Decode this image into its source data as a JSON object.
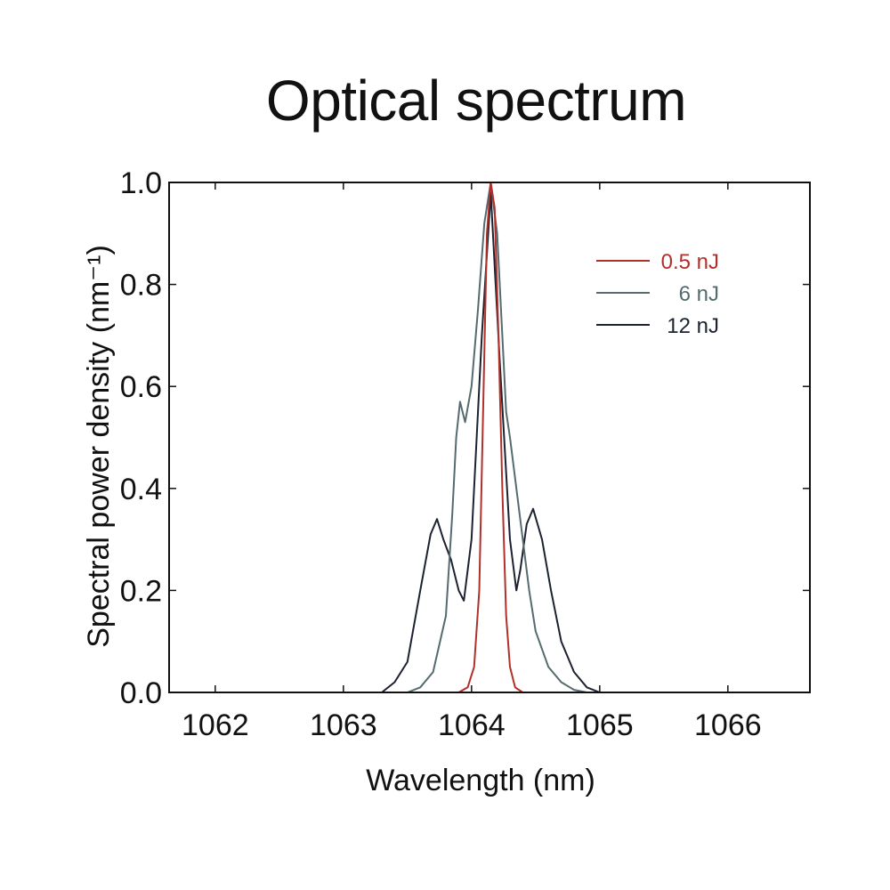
{
  "chart_data": {
    "type": "line",
    "title": "Optical spectrum",
    "xlabel": "Wavelength (nm)",
    "ylabel": "Spectral power density (nm⁻¹)",
    "xlim": [
      1061.64,
      1066.64
    ],
    "ylim": [
      0.0,
      1.0
    ],
    "xticks": [
      1062,
      1063,
      1064,
      1065,
      1066
    ],
    "xtick_labels": [
      "1062",
      "1063",
      "1064",
      "1065",
      "1066"
    ],
    "yticks": [
      0.0,
      0.2,
      0.4,
      0.6,
      0.8,
      1.0
    ],
    "ytick_labels": [
      "0.0",
      "0.2",
      "0.4",
      "0.6",
      "0.8",
      "1.0"
    ],
    "grid": false,
    "legend_position": "top-right",
    "series": [
      {
        "name": "0.5 nJ",
        "color": "#b0302a",
        "x": [
          1061.64,
          1063.9,
          1063.97,
          1064.02,
          1064.06,
          1064.09,
          1064.12,
          1064.15,
          1064.18,
          1064.21,
          1064.24,
          1064.27,
          1064.3,
          1064.34,
          1064.4,
          1066.64
        ],
        "y": [
          0.0,
          0.0,
          0.01,
          0.05,
          0.2,
          0.55,
          0.9,
          1.0,
          0.95,
          0.7,
          0.4,
          0.15,
          0.05,
          0.01,
          0.0,
          0.0
        ]
      },
      {
        "name": "6 nJ",
        "color": "#556b6e",
        "x": [
          1061.64,
          1063.5,
          1063.6,
          1063.7,
          1063.8,
          1063.85,
          1063.88,
          1063.91,
          1063.95,
          1064.0,
          1064.05,
          1064.1,
          1064.15,
          1064.2,
          1064.24,
          1064.27,
          1064.3,
          1064.35,
          1064.4,
          1064.45,
          1064.5,
          1064.6,
          1064.7,
          1064.8,
          1064.9,
          1066.64
        ],
        "y": [
          0.0,
          0.0,
          0.01,
          0.04,
          0.15,
          0.35,
          0.5,
          0.57,
          0.53,
          0.6,
          0.75,
          0.92,
          1.0,
          0.9,
          0.7,
          0.55,
          0.5,
          0.4,
          0.3,
          0.2,
          0.12,
          0.05,
          0.02,
          0.005,
          0.0,
          0.0
        ]
      },
      {
        "name": "12 nJ",
        "color": "#1c2230",
        "x": [
          1061.64,
          1063.3,
          1063.4,
          1063.5,
          1063.6,
          1063.68,
          1063.73,
          1063.78,
          1063.84,
          1063.9,
          1063.94,
          1064.0,
          1064.08,
          1064.15,
          1064.22,
          1064.3,
          1064.35,
          1064.38,
          1064.43,
          1064.48,
          1064.55,
          1064.62,
          1064.7,
          1064.8,
          1064.9,
          1065.0,
          1066.64
        ],
        "y": [
          0.0,
          0.0,
          0.02,
          0.06,
          0.2,
          0.31,
          0.34,
          0.3,
          0.26,
          0.2,
          0.18,
          0.3,
          0.7,
          0.98,
          0.65,
          0.3,
          0.2,
          0.24,
          0.33,
          0.36,
          0.3,
          0.2,
          0.1,
          0.04,
          0.01,
          0.0,
          0.0
        ]
      }
    ]
  }
}
